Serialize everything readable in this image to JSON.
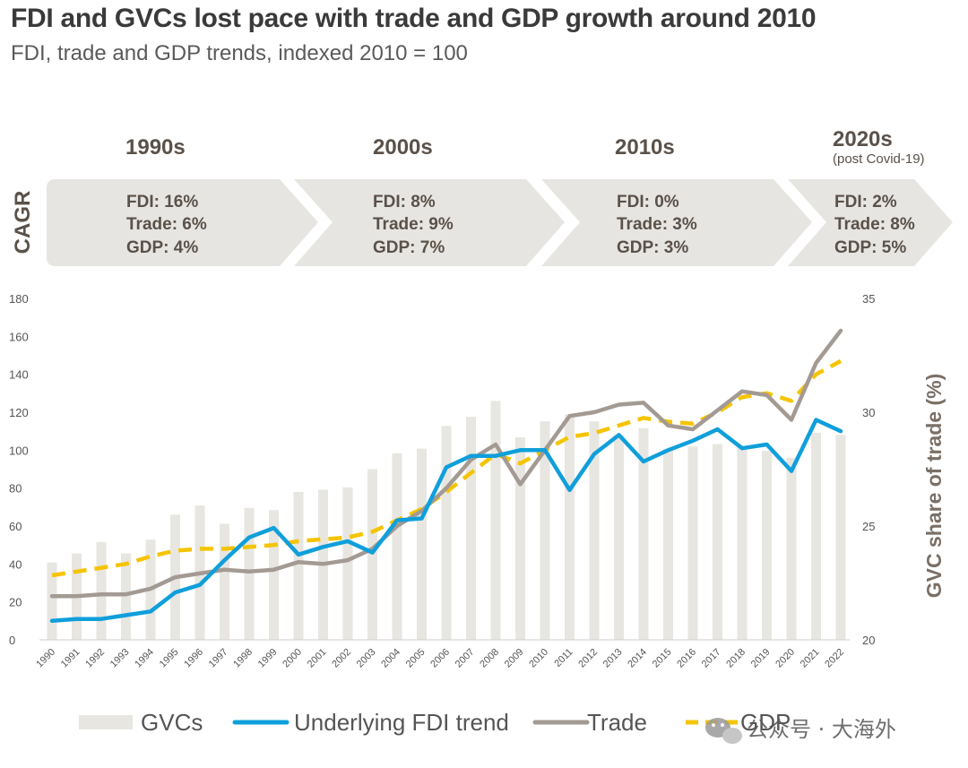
{
  "header": {
    "title": "FDI and GVCs lost pace with trade and GDP growth around 2010",
    "subtitle": "FDI, trade and GDP trends, indexed 2010 = 100"
  },
  "cagr": {
    "label": "CAGR",
    "periods": [
      {
        "decade": "1990s",
        "note": "",
        "fdi": "FDI: 16%",
        "trade": "Trade: 6%",
        "gdp": "GDP: 4%"
      },
      {
        "decade": "2000s",
        "note": "",
        "fdi": "FDI: 8%",
        "trade": "Trade: 9%",
        "gdp": "GDP: 7%"
      },
      {
        "decade": "2010s",
        "note": "",
        "fdi": "FDI: 0%",
        "trade": "Trade: 3%",
        "gdp": "GDP: 3%"
      },
      {
        "decade": "2020s",
        "note": "(post Covid-19)",
        "fdi": "FDI: 2%",
        "trade": "Trade: 8%",
        "gdp": "GDP: 5%"
      }
    ]
  },
  "colors": {
    "gvc": "#e8e6e1",
    "fdi": "#0f9fdb",
    "trade": "#a39a93",
    "gdp": "#f5c400",
    "banner": "#e6e5e1",
    "banner_text": "#5a5149"
  },
  "chart_data": {
    "type": "bar+line",
    "years": [
      "1990",
      "1991",
      "1992",
      "1993",
      "1994",
      "1995",
      "1996",
      "1997",
      "1998",
      "1999",
      "2000",
      "2001",
      "2002",
      "2003",
      "2004",
      "2005",
      "2006",
      "2007",
      "2008",
      "2009",
      "2010",
      "2011",
      "2012",
      "2013",
      "2014",
      "2015",
      "2016",
      "2017",
      "2018",
      "2019",
      "2020",
      "2021",
      "2022"
    ],
    "ylim_left": [
      0,
      180
    ],
    "yticks_left": [
      0,
      20,
      40,
      60,
      80,
      100,
      120,
      140,
      160,
      180
    ],
    "ylim_right": [
      20,
      35
    ],
    "yticks_right": [
      20,
      25,
      30,
      35
    ],
    "ylabel_right": "GVC share of trade (%)",
    "series": [
      {
        "name": "GVCs",
        "kind": "bar",
        "axis": "right",
        "values": [
          23.4,
          23.8,
          24.3,
          23.8,
          24.4,
          25.5,
          25.9,
          25.1,
          25.8,
          25.7,
          26.5,
          26.6,
          26.7,
          27.5,
          28.2,
          28.4,
          29.4,
          29.8,
          30.5,
          28.9,
          29.6,
          29.9,
          29.6,
          29.0,
          29.3,
          28.4,
          28.5,
          28.6,
          28.5,
          28.3,
          28.0,
          29.1,
          29.0
        ]
      },
      {
        "name": "Underlying FDI trend",
        "kind": "line",
        "axis": "left",
        "values": [
          10,
          11,
          11,
          13,
          15,
          25,
          29,
          42,
          54,
          59,
          45,
          49,
          52,
          46,
          63,
          64,
          91,
          97,
          97,
          100,
          100,
          79,
          98,
          108,
          94,
          100,
          105,
          111,
          101,
          103,
          89,
          116,
          110
        ]
      },
      {
        "name": "Trade",
        "kind": "line",
        "axis": "left",
        "values": [
          23,
          23,
          24,
          24,
          27,
          33,
          35,
          37,
          36,
          37,
          41,
          40,
          42,
          48,
          60,
          68,
          80,
          95,
          103,
          82,
          100,
          118,
          120,
          124,
          125,
          113,
          111,
          121,
          131,
          129,
          116,
          146,
          163
        ]
      },
      {
        "name": "GDP",
        "kind": "line",
        "axis": "left",
        "dashed": true,
        "values": [
          34,
          36,
          38,
          40,
          44,
          47,
          48,
          48,
          49,
          50,
          52,
          53,
          54,
          57,
          63,
          69,
          78,
          88,
          98,
          93,
          100,
          107,
          109,
          113,
          117,
          115,
          114,
          120,
          128,
          130,
          126,
          140,
          147
        ]
      }
    ]
  },
  "legend": {
    "gvc": "GVCs",
    "fdi": "Underlying FDI trend",
    "trade": "Trade",
    "gdp": "GDP"
  },
  "watermark": {
    "icon": "wechat-icon",
    "text": "公众号 · 大海外"
  }
}
